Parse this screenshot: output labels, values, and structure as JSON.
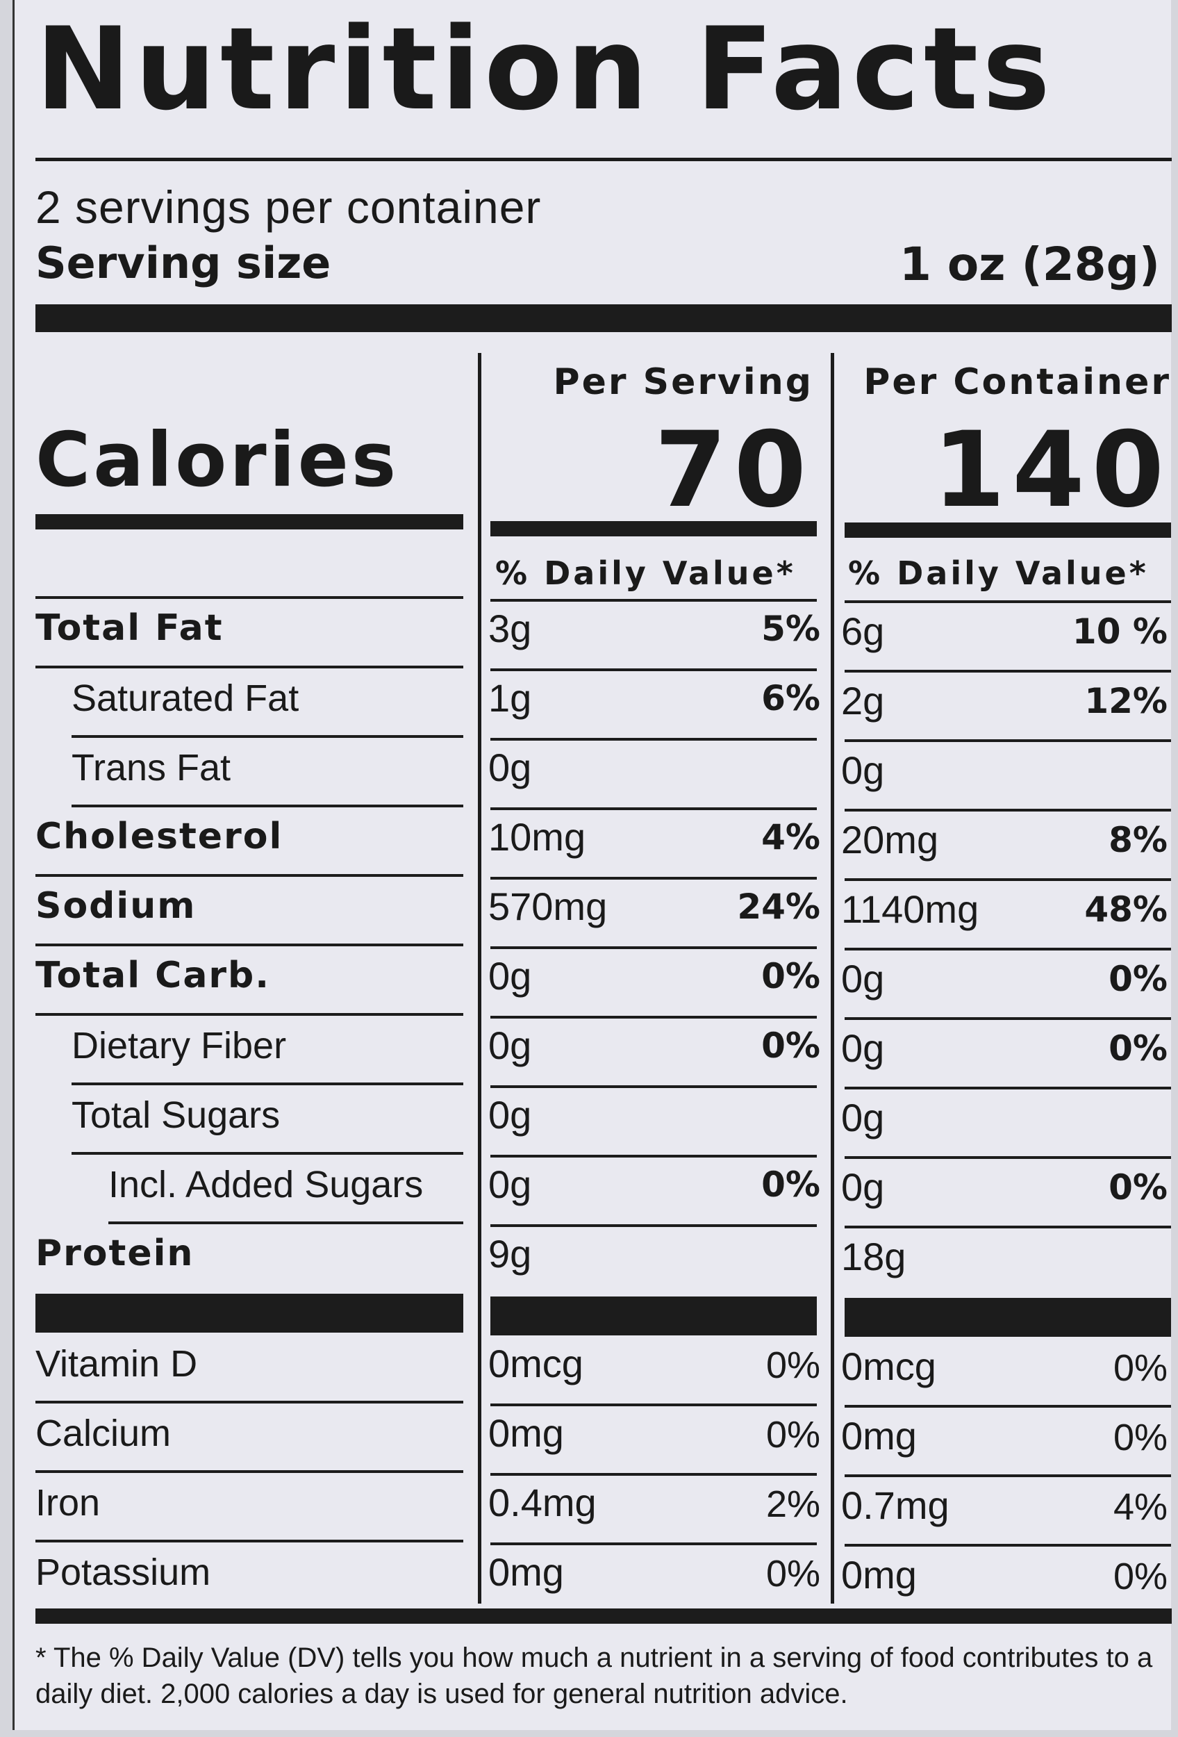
{
  "title": "Nutrition Facts",
  "servings_per_container": "2 servings per container",
  "serving_size": {
    "label": "Serving size",
    "value": "1 oz (28g)"
  },
  "calories": {
    "label": "Calories",
    "per_serving_header": "Per Serving",
    "per_serving": "70",
    "per_container_header": "Per Container",
    "per_container": "140"
  },
  "dv_header": "% Daily Value*",
  "nutrients": [
    {
      "name": "Total Fat",
      "serving_amount": "3g",
      "serving_dv": "5%",
      "container_amount": "6g",
      "container_dv": "10 %"
    },
    {
      "name": "Saturated Fat",
      "serving_amount": "1g",
      "serving_dv": "6%",
      "container_amount": "2g",
      "container_dv": "12%"
    },
    {
      "name": "Trans Fat",
      "serving_amount": "0g",
      "serving_dv": "",
      "container_amount": "0g",
      "container_dv": ""
    },
    {
      "name": "Cholesterol",
      "serving_amount": "10mg",
      "serving_dv": "4%",
      "container_amount": "20mg",
      "container_dv": "8%"
    },
    {
      "name": "Sodium",
      "serving_amount": "570mg",
      "serving_dv": "24%",
      "container_amount": "1140mg",
      "container_dv": "48%"
    },
    {
      "name": "Total Carb.",
      "serving_amount": "0g",
      "serving_dv": "0%",
      "container_amount": "0g",
      "container_dv": "0%"
    },
    {
      "name": "Dietary Fiber",
      "serving_amount": "0g",
      "serving_dv": "0%",
      "container_amount": "0g",
      "container_dv": "0%"
    },
    {
      "name": "Total Sugars",
      "serving_amount": "0g",
      "serving_dv": "",
      "container_amount": "0g",
      "container_dv": ""
    },
    {
      "name": "Incl. Added Sugars",
      "serving_amount": "0g",
      "serving_dv": "0%",
      "container_amount": "0g",
      "container_dv": "0%"
    },
    {
      "name": "Protein",
      "serving_amount": "9g",
      "serving_dv": "",
      "container_amount": "18g",
      "container_dv": ""
    }
  ],
  "vitamins": [
    {
      "name": "Vitamin D",
      "serving_amount": "0mcg",
      "serving_dv": "0%",
      "container_amount": "0mcg",
      "container_dv": "0%"
    },
    {
      "name": "Calcium",
      "serving_amount": "0mg",
      "serving_dv": "0%",
      "container_amount": "0mg",
      "container_dv": "0%"
    },
    {
      "name": "Iron",
      "serving_amount": "0.4mg",
      "serving_dv": "2%",
      "container_amount": "0.7mg",
      "container_dv": "4%"
    },
    {
      "name": "Potassium",
      "serving_amount": "0mg",
      "serving_dv": "0%",
      "container_amount": "0mg",
      "container_dv": "0%"
    }
  ],
  "footnote": "* The % Daily Value (DV) tells you how much a nutrient in a serving of food contributes to a daily diet. 2,000 calories a day is used for general nutrition advice."
}
